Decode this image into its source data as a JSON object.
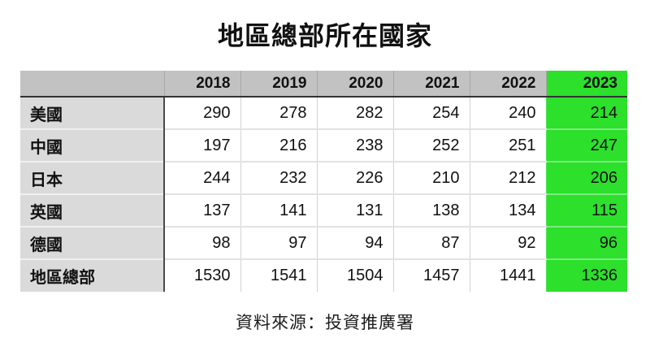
{
  "title": "地區總部所在國家",
  "source_note": "資料來源：投資推廣署",
  "colors": {
    "highlight_green": "#2ce02c",
    "header_gray": "#c2c2c2",
    "label_gray": "#dadada",
    "header_divider": "#333333",
    "text": "#111111"
  },
  "table": {
    "corner_label": "",
    "years": [
      "2018",
      "2019",
      "2020",
      "2021",
      "2022",
      "2023"
    ],
    "highlight_year": "2023",
    "rows": [
      {
        "label": "美國",
        "values": [
          "290",
          "278",
          "282",
          "254",
          "240",
          "214"
        ]
      },
      {
        "label": "中國",
        "values": [
          "197",
          "216",
          "238",
          "252",
          "251",
          "247"
        ]
      },
      {
        "label": "日本",
        "values": [
          "244",
          "232",
          "226",
          "210",
          "212",
          "206"
        ]
      },
      {
        "label": "英國",
        "values": [
          "137",
          "141",
          "131",
          "138",
          "134",
          "115"
        ]
      },
      {
        "label": "德國",
        "values": [
          "98",
          "97",
          "94",
          "87",
          "92",
          "96"
        ]
      },
      {
        "label": "地區總部",
        "values": [
          "1530",
          "1541",
          "1504",
          "1457",
          "1441",
          "1336"
        ]
      }
    ]
  },
  "chart_data": {
    "type": "table",
    "title": "地區總部所在國家",
    "categories": [
      "2018",
      "2019",
      "2020",
      "2021",
      "2022",
      "2023"
    ],
    "series": [
      {
        "name": "美國",
        "values": [
          290,
          278,
          282,
          254,
          240,
          214
        ]
      },
      {
        "name": "中國",
        "values": [
          197,
          216,
          238,
          252,
          251,
          247
        ]
      },
      {
        "name": "日本",
        "values": [
          244,
          232,
          226,
          210,
          212,
          206
        ]
      },
      {
        "name": "英國",
        "values": [
          137,
          141,
          131,
          138,
          134,
          115
        ]
      },
      {
        "name": "德國",
        "values": [
          98,
          97,
          94,
          87,
          92,
          96
        ]
      },
      {
        "name": "地區總部",
        "values": [
          1530,
          1541,
          1504,
          1457,
          1441,
          1336
        ]
      }
    ],
    "highlight_column": "2023",
    "source": "資料來源：投資推廣署",
    "layout": {
      "highlight_color": "#2ce02c",
      "header_background": "#c2c2c2",
      "row_label_background": "#dadada"
    }
  }
}
